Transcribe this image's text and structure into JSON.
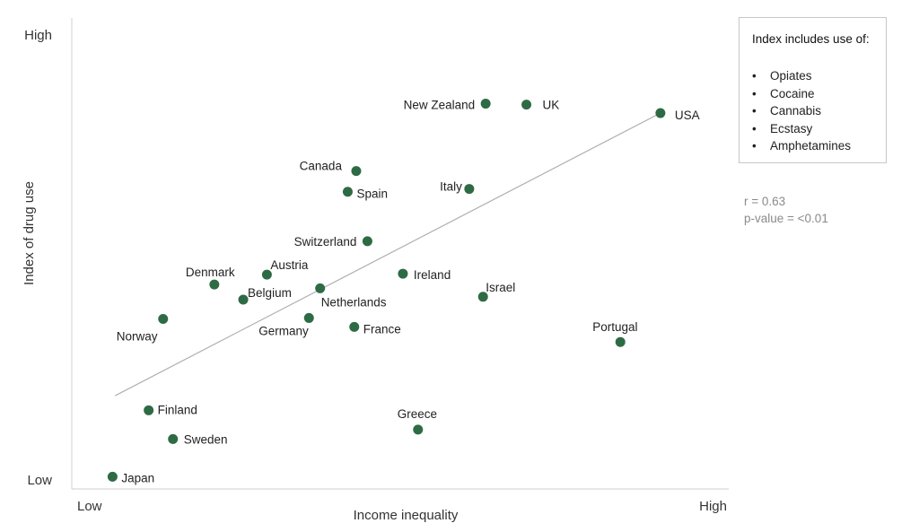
{
  "chart_data": {
    "type": "scatter",
    "xlabel": "Income inequality",
    "ylabel": "Index of drug use",
    "x_ticks": {
      "low": "Low",
      "high": "High"
    },
    "y_ticks": {
      "low": "Low",
      "high": "High"
    },
    "xlim": [
      0,
      100
    ],
    "ylim": [
      0,
      100
    ],
    "points": [
      {
        "label": "USA",
        "x": 89.6,
        "y": 79.8
      },
      {
        "label": "UK",
        "x": 69.2,
        "y": 81.6
      },
      {
        "label": "New Zealand",
        "x": 63.0,
        "y": 81.8
      },
      {
        "label": "Canada",
        "x": 43.3,
        "y": 67.5
      },
      {
        "label": "Italy",
        "x": 60.5,
        "y": 63.7
      },
      {
        "label": "Spain",
        "x": 42.0,
        "y": 63.1
      },
      {
        "label": "Switzerland",
        "x": 45.0,
        "y": 52.6
      },
      {
        "label": "Austria",
        "x": 29.7,
        "y": 45.5
      },
      {
        "label": "Denmark",
        "x": 21.7,
        "y": 43.4
      },
      {
        "label": "Ireland",
        "x": 50.4,
        "y": 45.7
      },
      {
        "label": "Netherlands",
        "x": 37.8,
        "y": 42.6
      },
      {
        "label": "Israel",
        "x": 62.6,
        "y": 40.8
      },
      {
        "label": "Belgium",
        "x": 26.1,
        "y": 40.2
      },
      {
        "label": "Norway",
        "x": 13.9,
        "y": 36.1
      },
      {
        "label": "Germany",
        "x": 36.1,
        "y": 36.3
      },
      {
        "label": "France",
        "x": 43.0,
        "y": 34.4
      },
      {
        "label": "Portugal",
        "x": 83.5,
        "y": 31.2
      },
      {
        "label": "Finland",
        "x": 11.7,
        "y": 16.7
      },
      {
        "label": "Greece",
        "x": 52.7,
        "y": 12.6
      },
      {
        "label": "Sweden",
        "x": 15.4,
        "y": 10.6
      },
      {
        "label": "Japan",
        "x": 6.2,
        "y": 2.6
      }
    ],
    "trendline": {
      "x1": 6.6,
      "y1": 19.8,
      "x2": 89.6,
      "y2": 79.8
    },
    "marker_color": "#2e6b45",
    "trendline_color": "#b0b0b0",
    "legend": {
      "title": "Index includes use of:",
      "items": [
        "Opiates",
        "Cocaine",
        "Cannabis",
        "Ecstasy",
        "Amphetamines"
      ],
      "placement": "top-right"
    },
    "annotations": [
      "r = 0.63",
      "p-value = <0.01"
    ]
  }
}
